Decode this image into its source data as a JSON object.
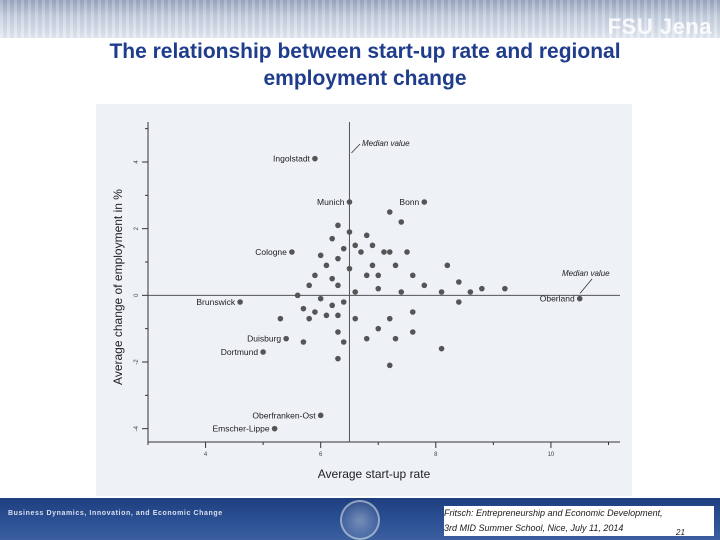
{
  "header": {
    "brand": "FSU Jena",
    "title_line1": "The relationship between start-up rate and regional",
    "title_line2": "employment change"
  },
  "footer": {
    "course": "Business Dynamics, Innovation, and Economic Change",
    "citation_line1": "Fritsch: Entrepreneurship and Economic Development,",
    "citation_line2": "3rd MID Summer School, Nice, July 11, 2014",
    "page_number": "21"
  },
  "colors": {
    "title": "#1f3d8c",
    "footer_bg": "#2a4f92",
    "plot_bg": "#eef1f6",
    "point": "#555555",
    "axis": "#333333"
  },
  "chart_data": {
    "type": "scatter",
    "title": "The relationship between start-up rate and regional employment change",
    "xlabel": "Average start-up rate",
    "ylabel": "Average change of employment in %",
    "xlim": [
      3.0,
      11.2
    ],
    "ylim": [
      -4.4,
      5.2
    ],
    "xticks": [
      4,
      6,
      8,
      10
    ],
    "yticks": [
      -4,
      -2,
      0,
      2,
      4
    ],
    "grid": false,
    "median_x": 6.5,
    "median_y": 0.0,
    "annotations": [
      "Median value",
      "Median value"
    ],
    "labeled_points": [
      {
        "name": "Ingolstadt",
        "x": 5.9,
        "y": 4.1
      },
      {
        "name": "Munich",
        "x": 6.5,
        "y": 2.8
      },
      {
        "name": "Bonn",
        "x": 7.8,
        "y": 2.8
      },
      {
        "name": "Cologne",
        "x": 5.5,
        "y": 1.3
      },
      {
        "name": "Oberland",
        "x": 10.5,
        "y": -0.1
      },
      {
        "name": "Brunswick",
        "x": 4.6,
        "y": -0.2
      },
      {
        "name": "Duisburg",
        "x": 5.4,
        "y": -1.3
      },
      {
        "name": "Dortmund",
        "x": 5.0,
        "y": -1.7
      },
      {
        "name": "Oberfranken-Ost",
        "x": 6.0,
        "y": -3.6
      },
      {
        "name": "Emscher-Lippe",
        "x": 5.2,
        "y": -4.0
      }
    ],
    "points": [
      {
        "x": 7.2,
        "y": 2.5
      },
      {
        "x": 7.4,
        "y": 2.2
      },
      {
        "x": 6.3,
        "y": 2.1
      },
      {
        "x": 6.5,
        "y": 1.9
      },
      {
        "x": 6.8,
        "y": 1.8
      },
      {
        "x": 6.2,
        "y": 1.7
      },
      {
        "x": 6.6,
        "y": 1.5
      },
      {
        "x": 6.9,
        "y": 1.5
      },
      {
        "x": 6.4,
        "y": 1.4
      },
      {
        "x": 6.0,
        "y": 1.2
      },
      {
        "x": 6.3,
        "y": 1.1
      },
      {
        "x": 6.7,
        "y": 1.3
      },
      {
        "x": 7.1,
        "y": 1.3
      },
      {
        "x": 7.2,
        "y": 1.3
      },
      {
        "x": 7.5,
        "y": 1.3
      },
      {
        "x": 6.1,
        "y": 0.9
      },
      {
        "x": 6.5,
        "y": 0.8
      },
      {
        "x": 6.9,
        "y": 0.9
      },
      {
        "x": 7.3,
        "y": 0.9
      },
      {
        "x": 5.9,
        "y": 0.6
      },
      {
        "x": 6.2,
        "y": 0.5
      },
      {
        "x": 6.8,
        "y": 0.6
      },
      {
        "x": 7.0,
        "y": 0.6
      },
      {
        "x": 7.6,
        "y": 0.6
      },
      {
        "x": 8.2,
        "y": 0.9
      },
      {
        "x": 8.4,
        "y": 0.4
      },
      {
        "x": 8.8,
        "y": 0.2
      },
      {
        "x": 9.2,
        "y": 0.2
      },
      {
        "x": 5.8,
        "y": 0.3
      },
      {
        "x": 6.3,
        "y": 0.3
      },
      {
        "x": 6.6,
        "y": 0.1
      },
      {
        "x": 7.0,
        "y": 0.2
      },
      {
        "x": 7.4,
        "y": 0.1
      },
      {
        "x": 7.8,
        "y": 0.3
      },
      {
        "x": 8.1,
        "y": 0.1
      },
      {
        "x": 8.6,
        "y": 0.1
      },
      {
        "x": 8.4,
        "y": -0.2
      },
      {
        "x": 5.6,
        "y": 0.0
      },
      {
        "x": 6.0,
        "y": -0.1
      },
      {
        "x": 6.2,
        "y": -0.3
      },
      {
        "x": 6.4,
        "y": -0.2
      },
      {
        "x": 5.7,
        "y": -0.4
      },
      {
        "x": 5.9,
        "y": -0.5
      },
      {
        "x": 6.1,
        "y": -0.6
      },
      {
        "x": 6.3,
        "y": -0.6
      },
      {
        "x": 5.3,
        "y": -0.7
      },
      {
        "x": 5.8,
        "y": -0.7
      },
      {
        "x": 6.6,
        "y": -0.7
      },
      {
        "x": 7.2,
        "y": -0.7
      },
      {
        "x": 7.6,
        "y": -0.5
      },
      {
        "x": 7.0,
        "y": -1.0
      },
      {
        "x": 6.3,
        "y": -1.1
      },
      {
        "x": 6.8,
        "y": -1.3
      },
      {
        "x": 7.3,
        "y": -1.3
      },
      {
        "x": 7.6,
        "y": -1.1
      },
      {
        "x": 5.7,
        "y": -1.4
      },
      {
        "x": 6.4,
        "y": -1.4
      },
      {
        "x": 8.1,
        "y": -1.6
      },
      {
        "x": 6.3,
        "y": -1.9
      },
      {
        "x": 7.2,
        "y": -2.1
      }
    ]
  }
}
